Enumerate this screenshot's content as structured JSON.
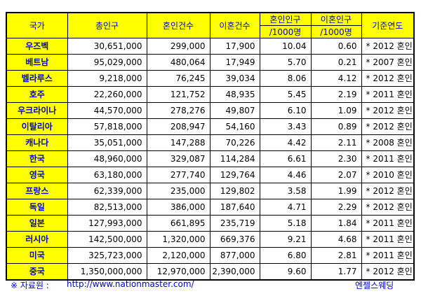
{
  "header": {
    "country": "국가",
    "total_population": "총인구",
    "marriages": "혼인건수",
    "divorces": "이혼건수",
    "marriage_rate_1": "혼인인구",
    "marriage_rate_2": "/1000명",
    "divorce_rate_1": "이혼인구",
    "divorce_rate_2": "/1000명",
    "base_year": "기준연도"
  },
  "rows": [
    {
      "country": "우즈벡",
      "population": "30,651,000",
      "marriages": "299,000",
      "divorces": "17,900",
      "marriage_rate": "10.04",
      "divorce_rate": "0.60",
      "note": "* 2012 혼인"
    },
    {
      "country": "베트남",
      "population": "95,029,000",
      "marriages": "480,064",
      "divorces": "17,949",
      "marriage_rate": "5.70",
      "divorce_rate": "0.21",
      "note": "* 2007 혼인"
    },
    {
      "country": "벨라루스",
      "population": "9,218,000",
      "marriages": "76,245",
      "divorces": "39,034",
      "marriage_rate": "8.06",
      "divorce_rate": "4.12",
      "note": "* 2012 혼인"
    },
    {
      "country": "호주",
      "population": "22,260,000",
      "marriages": "121,752",
      "divorces": "48,935",
      "marriage_rate": "5.45",
      "divorce_rate": "2.19",
      "note": "* 2011 혼인"
    },
    {
      "country": "우크라이나",
      "population": "44,570,000",
      "marriages": "278,276",
      "divorces": "49,807",
      "marriage_rate": "6.10",
      "divorce_rate": "1.09",
      "note": "* 2012 혼인"
    },
    {
      "country": "이탈리아",
      "population": "57,818,000",
      "marriages": "208,947",
      "divorces": "54,160",
      "marriage_rate": "3.43",
      "divorce_rate": "0.89",
      "note": "* 2012 혼인"
    },
    {
      "country": "캐나다",
      "population": "35,051,000",
      "marriages": "147,288",
      "divorces": "70,226",
      "marriage_rate": "4.42",
      "divorce_rate": "2.11",
      "note": "* 2008 혼인"
    },
    {
      "country": "한국",
      "population": "48,960,000",
      "marriages": "329,087",
      "divorces": "114,284",
      "marriage_rate": "6.61",
      "divorce_rate": "2.30",
      "note": "* 2011 혼인"
    },
    {
      "country": "영국",
      "population": "63,180,000",
      "marriages": "277,740",
      "divorces": "129,764",
      "marriage_rate": "4.46",
      "divorce_rate": "2.07",
      "note": "* 2010 혼인"
    },
    {
      "country": "프랑스",
      "population": "62,339,000",
      "marriages": "235,000",
      "divorces": "129,802",
      "marriage_rate": "3.58",
      "divorce_rate": "1.99",
      "note": "* 2012 혼인"
    },
    {
      "country": "독일",
      "population": "82,513,000",
      "marriages": "386,000",
      "divorces": "187,640",
      "marriage_rate": "4.71",
      "divorce_rate": "2.29",
      "note": "* 2012 혼인"
    },
    {
      "country": "일본",
      "population": "127,993,000",
      "marriages": "661,895",
      "divorces": "235,719",
      "marriage_rate": "5.18",
      "divorce_rate": "1.84",
      "note": "* 2011 혼인"
    },
    {
      "country": "러시아",
      "population": "142,500,000",
      "marriages": "1,320,000",
      "divorces": "669,376",
      "marriage_rate": "9.21",
      "divorce_rate": "4.68",
      "note": "* 2011 혼인"
    },
    {
      "country": "미국",
      "population": "325,723,000",
      "marriages": "2,120,000",
      "divorces": "877,000",
      "marriage_rate": "6.80",
      "divorce_rate": "2.81",
      "note": "* 2011 혼인"
    },
    {
      "country": "중국",
      "population": "1,350,000,000",
      "marriages": "12,970,000",
      "divorces": "2,390,000",
      "marriage_rate": "9.60",
      "divorce_rate": "1.77",
      "note": "* 2012 혼인"
    }
  ],
  "footer": {
    "source_label": "※ 자료원     :",
    "source_url": "http://www.nationmaster.com/",
    "credit": "엔젤스웨딩"
  },
  "colors": {
    "header_bg": "#ffff00",
    "header_text": "#0000cc",
    "cell_text": "#000000"
  }
}
